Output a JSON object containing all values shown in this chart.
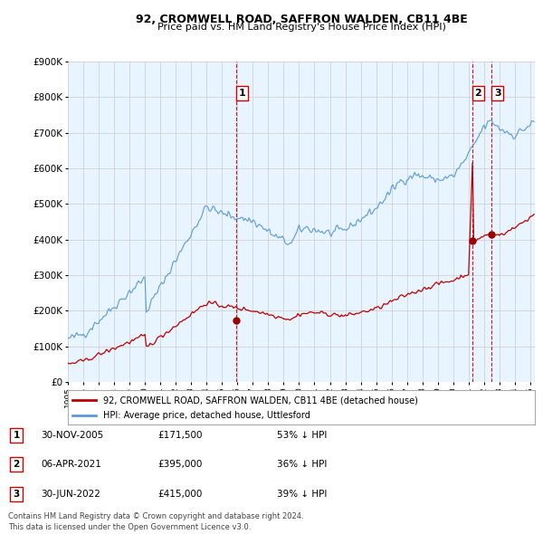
{
  "title": "92, CROMWELL ROAD, SAFFRON WALDEN, CB11 4BE",
  "subtitle": "Price paid vs. HM Land Registry's House Price Index (HPI)",
  "ylabel_ticks": [
    "£0",
    "£100K",
    "£200K",
    "£300K",
    "£400K",
    "£500K",
    "£600K",
    "£700K",
    "£800K",
    "£900K"
  ],
  "ylim": [
    0,
    900000
  ],
  "xlim_start": 1995.0,
  "xlim_end": 2025.3,
  "legend_line1": "92, CROMWELL ROAD, SAFFRON WALDEN, CB11 4BE (detached house)",
  "legend_line2": "HPI: Average price, detached house, Uttlesford",
  "transactions": [
    {
      "id": 1,
      "date": 2005.92,
      "price": 171500,
      "label": "1"
    },
    {
      "id": 2,
      "date": 2021.25,
      "price": 395000,
      "label": "2"
    },
    {
      "id": 3,
      "date": 2022.5,
      "price": 415000,
      "label": "3"
    }
  ],
  "transaction_table": [
    {
      "num": "1",
      "date": "30-NOV-2005",
      "price": "£171,500",
      "pct": "53% ↓ HPI"
    },
    {
      "num": "2",
      "date": "06-APR-2021",
      "price": "£395,000",
      "pct": "36% ↓ HPI"
    },
    {
      "num": "3",
      "date": "30-JUN-2022",
      "price": "£415,000",
      "pct": "39% ↓ HPI"
    }
  ],
  "footer": "Contains HM Land Registry data © Crown copyright and database right 2024.\nThis data is licensed under the Open Government Licence v3.0.",
  "hpi_color": "#5b9bd5",
  "hpi_fill_color": "#ddeeff",
  "property_color": "#c00000",
  "marker_color": "#990000",
  "grid_color": "#cccccc",
  "background_color": "#ffffff",
  "plot_bg_color": "#e8f4ff",
  "dashed_line_color": "#cc0000"
}
